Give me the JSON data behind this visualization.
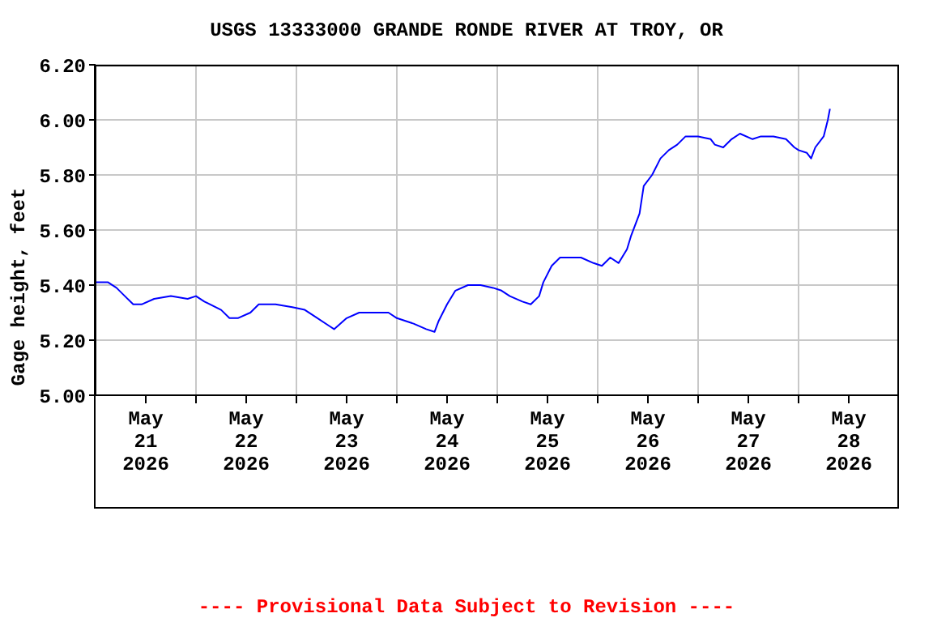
{
  "chart_data": {
    "type": "line",
    "title": "USGS 13333000 GRANDE RONDE RIVER AT TROY, OR",
    "ylabel": "Gage height, feet",
    "annotations": [
      "---- Provisional Data Subject to Revision ----"
    ],
    "x": [
      "2026-05-21T00:00",
      "2026-05-21T03:00",
      "2026-05-21T05:00",
      "2026-05-21T07:00",
      "2026-05-21T09:00",
      "2026-05-21T11:00",
      "2026-05-21T14:00",
      "2026-05-21T18:00",
      "2026-05-21T22:00",
      "2026-05-22T00:00",
      "2026-05-22T02:00",
      "2026-05-22T06:00",
      "2026-05-22T08:00",
      "2026-05-22T10:00",
      "2026-05-22T13:00",
      "2026-05-22T15:00",
      "2026-05-22T19:00",
      "2026-05-22T23:00",
      "2026-05-23T02:00",
      "2026-05-23T04:00",
      "2026-05-23T08:00",
      "2026-05-23T09:00",
      "2026-05-23T12:00",
      "2026-05-23T15:00",
      "2026-05-23T19:00",
      "2026-05-23T22:00",
      "2026-05-24T00:00",
      "2026-05-24T04:00",
      "2026-05-24T07:00",
      "2026-05-24T09:00",
      "2026-05-24T10:00",
      "2026-05-24T12:00",
      "2026-05-24T14:00",
      "2026-05-24T17:00",
      "2026-05-24T20:00",
      "2026-05-24T23:00",
      "2026-05-25T01:00",
      "2026-05-25T03:00",
      "2026-05-25T06:00",
      "2026-05-25T08:00",
      "2026-05-25T10:00",
      "2026-05-25T11:00",
      "2026-05-25T13:00",
      "2026-05-25T15:00",
      "2026-05-25T17:00",
      "2026-05-25T20:00",
      "2026-05-25T23:00",
      "2026-05-26T01:00",
      "2026-05-26T03:00",
      "2026-05-26T05:00",
      "2026-05-26T07:00",
      "2026-05-26T08:00",
      "2026-05-26T10:00",
      "2026-05-26T11:00",
      "2026-05-26T13:00",
      "2026-05-26T15:00",
      "2026-05-26T17:00",
      "2026-05-26T19:00",
      "2026-05-26T21:00",
      "2026-05-27T00:00",
      "2026-05-27T03:00",
      "2026-05-27T04:00",
      "2026-05-27T06:00",
      "2026-05-27T08:00",
      "2026-05-27T10:00",
      "2026-05-27T13:00",
      "2026-05-27T15:00",
      "2026-05-27T18:00",
      "2026-05-27T21:00",
      "2026-05-27T23:00",
      "2026-05-28T00:00",
      "2026-05-28T02:00",
      "2026-05-28T03:00",
      "2026-05-28T04:00",
      "2026-05-28T06:00",
      "2026-05-28T07:00",
      "2026-05-28T07:30"
    ],
    "series": [
      {
        "color": "#0000ff",
        "values": [
          5.41,
          5.41,
          5.39,
          5.36,
          5.33,
          5.33,
          5.35,
          5.36,
          5.35,
          5.36,
          5.34,
          5.31,
          5.28,
          5.28,
          5.3,
          5.33,
          5.33,
          5.32,
          5.31,
          5.29,
          5.25,
          5.24,
          5.28,
          5.3,
          5.3,
          5.3,
          5.28,
          5.26,
          5.24,
          5.23,
          5.27,
          5.33,
          5.38,
          5.4,
          5.4,
          5.39,
          5.38,
          5.36,
          5.34,
          5.33,
          5.36,
          5.41,
          5.47,
          5.5,
          5.5,
          5.5,
          5.48,
          5.47,
          5.5,
          5.48,
          5.53,
          5.58,
          5.66,
          5.76,
          5.8,
          5.86,
          5.89,
          5.91,
          5.94,
          5.94,
          5.93,
          5.91,
          5.9,
          5.93,
          5.95,
          5.93,
          5.94,
          5.94,
          5.93,
          5.9,
          5.89,
          5.88,
          5.86,
          5.9,
          5.94,
          6.0,
          6.04
        ]
      }
    ],
    "xlim": [
      "2026-05-21T00:00",
      "2026-05-29T00:00"
    ],
    "xticks": [
      {
        "value": "2026-05-21T12:00",
        "label": "May\n21\n2026"
      },
      {
        "value": "2026-05-22T12:00",
        "label": "May\n22\n2026"
      },
      {
        "value": "2026-05-23T12:00",
        "label": "May\n23\n2026"
      },
      {
        "value": "2026-05-24T12:00",
        "label": "May\n24\n2026"
      },
      {
        "value": "2026-05-25T12:00",
        "label": "May\n25\n2026"
      },
      {
        "value": "2026-05-26T12:00",
        "label": "May\n26\n2026"
      },
      {
        "value": "2026-05-27T12:00",
        "label": "May\n27\n2026"
      },
      {
        "value": "2026-05-28T12:00",
        "label": "May\n28\n2026"
      },
      {
        "value": "2026-05-22T00:00",
        "label": null
      },
      {
        "value": "2026-05-23T00:00",
        "label": null
      },
      {
        "value": "2026-05-24T00:00",
        "label": null
      },
      {
        "value": "2026-05-25T00:00",
        "label": null
      },
      {
        "value": "2026-05-26T00:00",
        "label": null
      },
      {
        "value": "2026-05-27T00:00",
        "label": null
      },
      {
        "value": "2026-05-28T00:00",
        "label": null
      }
    ],
    "ylim": [
      5.0,
      6.2
    ],
    "yticks": [
      {
        "value": 5.0,
        "label": "5.00"
      },
      {
        "value": 5.2,
        "label": "5.20"
      },
      {
        "value": 5.4,
        "label": "5.40"
      },
      {
        "value": 5.6,
        "label": "5.60"
      },
      {
        "value": 5.8,
        "label": "5.80"
      },
      {
        "value": 6.0,
        "label": "6.00"
      },
      {
        "value": 6.2,
        "label": "6.20"
      }
    ],
    "grid": true,
    "legend": false,
    "marker": "none",
    "line_style": "solid"
  }
}
